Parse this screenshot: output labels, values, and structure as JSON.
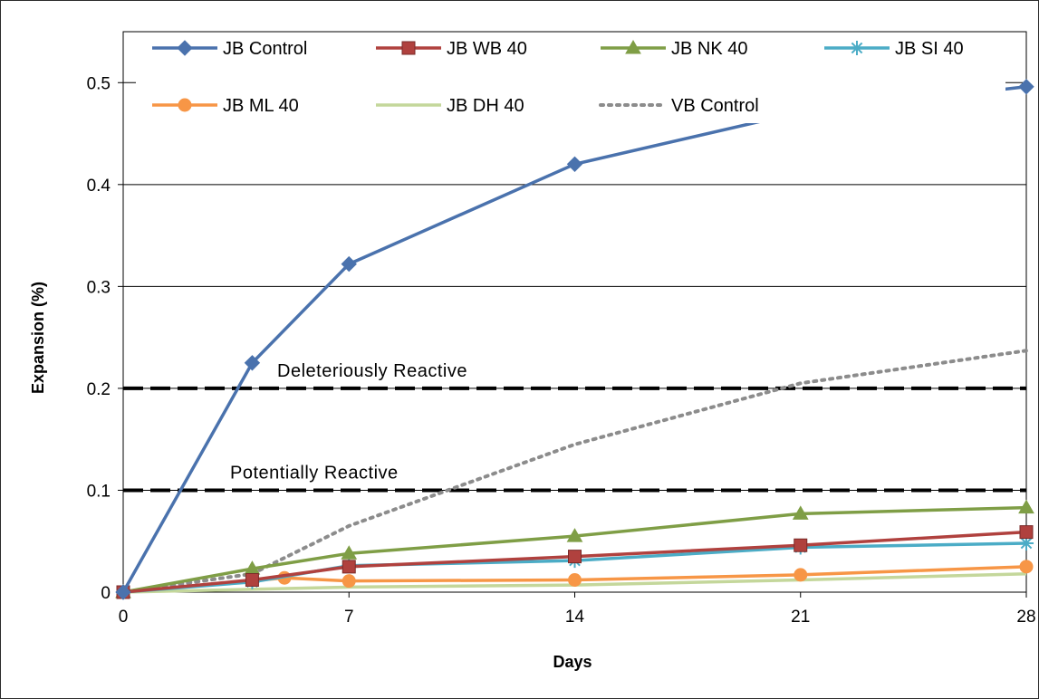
{
  "chart_data": {
    "type": "line",
    "xlabel": "Days",
    "ylabel": "Expansion (%)",
    "xlim": [
      0,
      28
    ],
    "ylim": [
      0,
      0.5
    ],
    "x_ticks": [
      0,
      7,
      14,
      21,
      28
    ],
    "y_ticks": [
      0,
      0.1,
      0.2,
      0.3,
      0.4,
      0.5
    ],
    "x_tick_labels": [
      "0",
      "7",
      "14",
      "21",
      "28"
    ],
    "y_tick_labels": [
      "0",
      "0.1",
      "0.2",
      "0.3",
      "0.4",
      "0.5"
    ],
    "grid": "horizontal",
    "legend_position": "top",
    "series": [
      {
        "name": "JB Control",
        "color": "#4a72ad",
        "marker": "diamond",
        "dash": "solid",
        "x": [
          0,
          4,
          7,
          14,
          21,
          28
        ],
        "y": [
          0,
          0.225,
          0.322,
          0.42,
          0.471,
          0.496
        ]
      },
      {
        "name": "JB WB 40",
        "color": "#b0413e",
        "marker": "square",
        "dash": "solid",
        "x": [
          0,
          4,
          7,
          14,
          21,
          28
        ],
        "y": [
          0,
          0.012,
          0.025,
          0.035,
          0.046,
          0.059
        ]
      },
      {
        "name": "JB NK 40",
        "color": "#7f9e46",
        "marker": "triangle",
        "dash": "solid",
        "x": [
          0,
          4,
          7,
          14,
          21,
          28
        ],
        "y": [
          0,
          0.023,
          0.038,
          0.055,
          0.077,
          0.083
        ]
      },
      {
        "name": "JB SI 40",
        "color": "#4bacc6",
        "marker": "asterisk",
        "dash": "solid",
        "x": [
          0,
          4,
          7,
          14,
          21,
          28
        ],
        "y": [
          0,
          0.01,
          0.026,
          0.031,
          0.044,
          0.048
        ]
      },
      {
        "name": "JB ML 40",
        "color": "#f79646",
        "marker": "circle",
        "dash": "solid",
        "x": [
          0,
          5,
          7,
          14,
          21,
          28
        ],
        "y": [
          0,
          0.014,
          0.011,
          0.012,
          0.017,
          0.025
        ]
      },
      {
        "name": "JB DH 40",
        "color": "#c4d79b",
        "marker": "none",
        "dash": "solid",
        "x": [
          0,
          7,
          14,
          21,
          28
        ],
        "y": [
          0,
          0.005,
          0.007,
          0.012,
          0.018
        ]
      },
      {
        "name": "VB Control",
        "color": "#8c8c8c",
        "marker": "none",
        "dash": "dotted",
        "x": [
          0,
          4,
          7,
          14,
          21,
          28
        ],
        "y": [
          0,
          0.018,
          0.065,
          0.145,
          0.205,
          0.237
        ]
      }
    ],
    "thresholds": [
      {
        "y": 0.2,
        "label": "Deleteriously Reactive"
      },
      {
        "y": 0.1,
        "label": "Potentially Reactive"
      }
    ]
  }
}
